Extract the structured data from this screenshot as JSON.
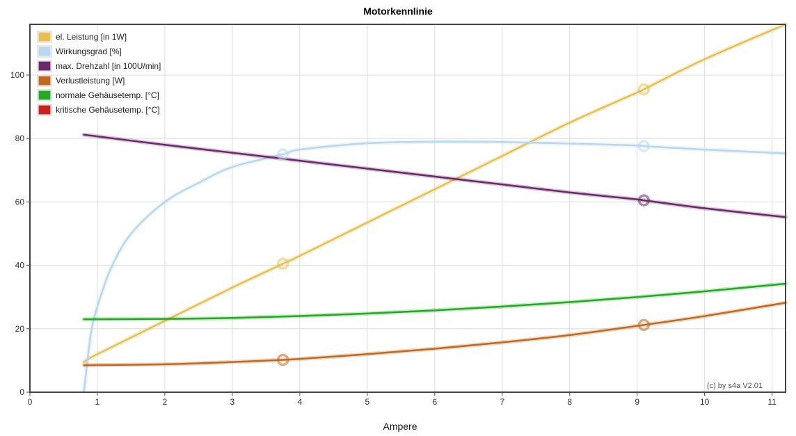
{
  "chart_data": {
    "type": "line",
    "title": "Motorkennlinie",
    "xlabel": "Ampere",
    "ylabel": "",
    "xlim": [
      0,
      11.2
    ],
    "ylim": [
      0,
      116
    ],
    "xticks": [
      0,
      1,
      2,
      3,
      4,
      5,
      6,
      7,
      8,
      9,
      10,
      11
    ],
    "yticks": [
      0,
      20,
      40,
      60,
      80,
      100
    ],
    "grid": true,
    "legend_position": "top-left",
    "credit": "(c) by s4a    V2.01",
    "series": [
      {
        "name": "el. Leistung [in 1W]",
        "color": "#e8c050",
        "x": [
          0.8,
          1,
          2,
          3,
          3.75,
          4,
          5,
          6,
          7,
          8,
          9,
          9.1,
          10,
          11.2
        ],
        "y": [
          9.5,
          12,
          22.5,
          33,
          40.5,
          43,
          53.5,
          64,
          74.5,
          85,
          94.5,
          95.5,
          105,
          116
        ],
        "markers_x": [
          3.75,
          9.1
        ]
      },
      {
        "name": "Wirkungsgrad [%]",
        "color": "#b8d8f0",
        "x": [
          0.8,
          0.9,
          1,
          1.2,
          1.5,
          2,
          2.5,
          3,
          3.75,
          4,
          5,
          6,
          7,
          8,
          9,
          9.1,
          10,
          11.2
        ],
        "y": [
          0,
          18,
          27,
          39,
          50,
          60,
          66,
          71,
          75,
          76.5,
          78.5,
          79,
          78.9,
          78.4,
          77.8,
          77.6,
          76.5,
          75.3
        ],
        "markers_x": [
          3.75,
          9.1
        ]
      },
      {
        "name": "max. Drehzahl [in 100U/min]",
        "color": "#6a2a6a",
        "x": [
          0.8,
          2,
          3,
          4,
          5,
          6,
          7,
          8,
          9,
          9.1,
          10,
          11.2
        ],
        "y": [
          81.2,
          78,
          75.5,
          73,
          70.5,
          68,
          65.5,
          63,
          60.8,
          60.5,
          58,
          55.2
        ],
        "markers_x": [
          9.1
        ]
      },
      {
        "name": "Verlustleistung [W]",
        "color": "#c06a20",
        "x": [
          0.8,
          2,
          3,
          3.75,
          4,
          5,
          6,
          7,
          8,
          9,
          9.1,
          10,
          11.2
        ],
        "y": [
          8.5,
          8.8,
          9.5,
          10.2,
          10.5,
          12,
          13.7,
          15.7,
          18,
          20.9,
          21.2,
          24,
          28.2
        ],
        "markers_x": [
          3.75,
          9.1
        ]
      },
      {
        "name": "normale Gehäusetemp. [°C]",
        "color": "#22aa22",
        "x": [
          0.8,
          2,
          3,
          4,
          5,
          6,
          7,
          8,
          9,
          10,
          11.2
        ],
        "y": [
          23,
          23.1,
          23.4,
          24,
          24.8,
          25.8,
          27,
          28.4,
          30,
          31.8,
          34.2
        ],
        "markers_x": []
      },
      {
        "name": "kritische Gehäusetemp. [°C]",
        "color": "#cc2222",
        "x": [],
        "y": [],
        "markers_x": []
      }
    ]
  }
}
